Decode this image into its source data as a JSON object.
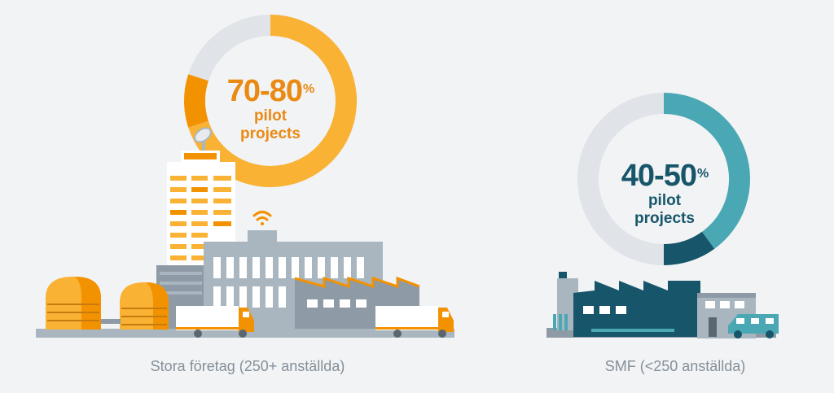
{
  "colors": {
    "orange": "#f9b233",
    "dark_orange": "#f39200",
    "teal": "#4aa8b4",
    "dark_teal": "#17566a",
    "donut_track": "#e0e4e9",
    "building_gray": "#a9b6c0"
  },
  "large": {
    "percent": "70-80",
    "percent_sign": "%",
    "label_line1": "pilot",
    "label_line2": "projects",
    "caption": "Stora företag (250+ anställda)",
    "fill_fraction": 0.8,
    "range_fraction": 0.1
  },
  "sme": {
    "percent": "40-50",
    "percent_sign": "%",
    "label_line1": "pilot",
    "label_line2": "projects",
    "caption": "SMF (<250 anställda)",
    "fill_fraction": 0.5,
    "range_fraction": 0.1
  },
  "icons": [
    "wifi-icon",
    "satellite-dish-icon"
  ]
}
